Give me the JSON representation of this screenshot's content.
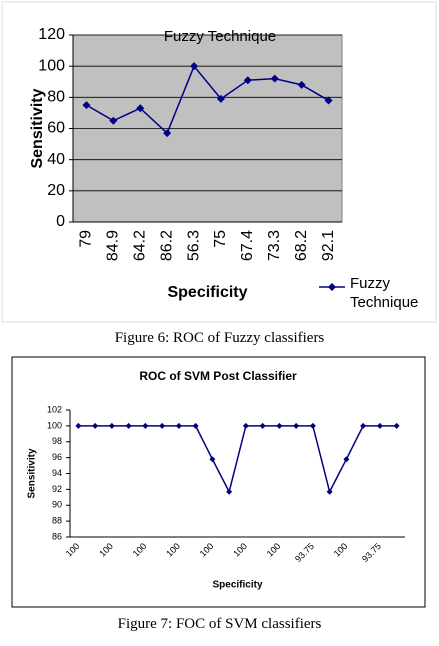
{
  "chart_data": [
    {
      "type": "line",
      "title": "Fuzzy Technique",
      "x_label": "Specificity",
      "y_label": "Sensitivity",
      "categories": [
        "79",
        "84.9",
        "64.2",
        "86.2",
        "56.3",
        "75",
        "67.4",
        "73.3",
        "68.2",
        "92.1"
      ],
      "series": [
        {
          "name": "Fuzzy Technique",
          "color": "#000080",
          "values": [
            75,
            65,
            73,
            57,
            100,
            79,
            91,
            92,
            88,
            78
          ]
        }
      ],
      "ylim": [
        0,
        120
      ],
      "yticks": [
        0,
        20,
        40,
        60,
        80,
        100,
        120
      ],
      "grid": true,
      "legend": "right"
    },
    {
      "type": "line",
      "title": "ROC  of SVM Post Classifier",
      "x_label": "Specificity",
      "y_label": "Sensitivity",
      "categories": [
        "100",
        null,
        "100",
        null,
        "100",
        null,
        "100",
        null,
        "100",
        null,
        "100",
        null,
        "100",
        null,
        "93.75",
        null,
        "100",
        null,
        "93.75",
        null
      ],
      "series": [
        {
          "color": "#000080",
          "values": [
            100,
            100,
            100,
            100,
            100,
            100,
            100,
            100,
            95.8,
            91.7,
            100,
            100,
            100,
            100,
            100,
            91.7,
            95.8,
            100,
            100,
            100
          ]
        }
      ],
      "ylim": [
        86,
        102
      ],
      "yticks": [
        86,
        88,
        90,
        92,
        94,
        96,
        98,
        100,
        102
      ],
      "grid": false
    }
  ],
  "captions": [
    "Figure 6: ROC of Fuzzy classifiers",
    "Figure 7: FOC of SVM classifiers"
  ]
}
